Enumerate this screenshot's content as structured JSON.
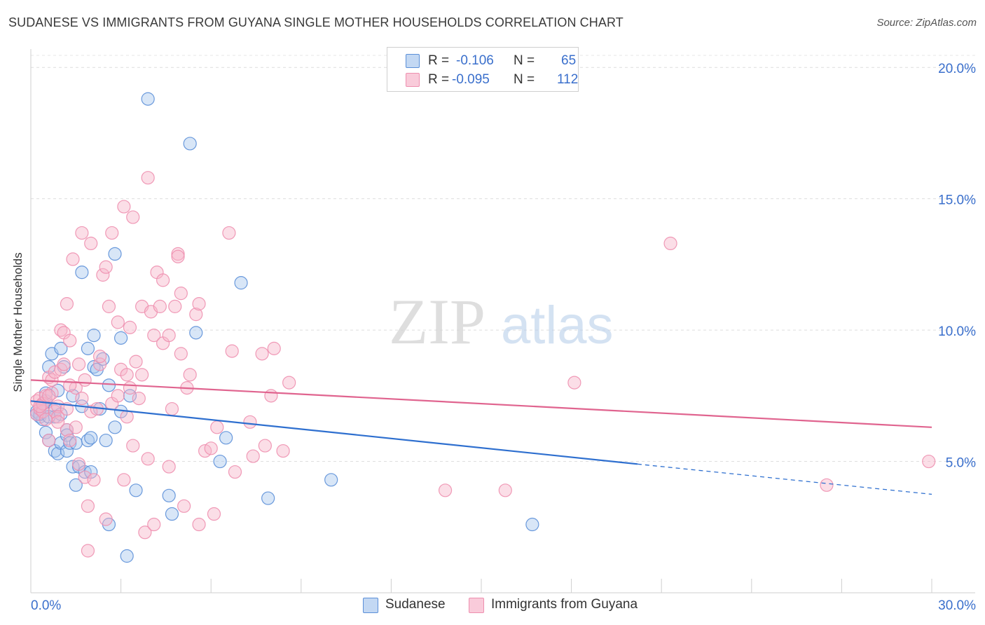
{
  "title": "SUDANESE VS IMMIGRANTS FROM GUYANA SINGLE MOTHER HOUSEHOLDS CORRELATION CHART",
  "source": "Source: ZipAtlas.com",
  "watermark": {
    "zip": "ZIP",
    "atlas": "atlas"
  },
  "legend": {
    "r_label": "R =",
    "n_label": "N =",
    "rows": [
      {
        "r": "-0.106",
        "n": "65",
        "color": "#a9c8ee"
      },
      {
        "r": "-0.095",
        "n": "112",
        "color": "#f6b5c9"
      }
    ]
  },
  "bottom_legend": {
    "series1": "Sudanese",
    "series2": "Immigrants from Guyana"
  },
  "chart_data": {
    "type": "scatter",
    "ylabel": "Single Mother Households",
    "xlim": [
      0,
      30
    ],
    "ylim": [
      0,
      20.7
    ],
    "x_tick_labels": [
      "0.0%",
      "30.0%"
    ],
    "y_ticks": [
      5,
      10,
      15,
      20
    ],
    "y_tick_labels": [
      "5.0%",
      "10.0%",
      "15.0%",
      "20.0%"
    ],
    "grid": true,
    "series": [
      {
        "name": "Sudanese",
        "color": "#5b8fd8",
        "fill": "#a9c8ee",
        "trend": {
          "x0": 0,
          "y0": 7.3,
          "x1": 20.2,
          "y1": 4.9,
          "dash_to_x": 30,
          "dash_to_y": 3.75
        },
        "points": [
          [
            0.2,
            6.9
          ],
          [
            0.3,
            6.7
          ],
          [
            0.4,
            7.0
          ],
          [
            0.4,
            6.6
          ],
          [
            0.5,
            7.3
          ],
          [
            0.5,
            7.6
          ],
          [
            0.5,
            6.1
          ],
          [
            0.6,
            5.8
          ],
          [
            0.6,
            8.6
          ],
          [
            0.7,
            9.1
          ],
          [
            0.8,
            7.0
          ],
          [
            0.8,
            6.7
          ],
          [
            0.8,
            5.4
          ],
          [
            0.9,
            5.3
          ],
          [
            0.9,
            7.7
          ],
          [
            1.0,
            9.3
          ],
          [
            1.0,
            5.7
          ],
          [
            1.1,
            8.6
          ],
          [
            1.2,
            6.2
          ],
          [
            1.2,
            5.4
          ],
          [
            1.2,
            6.0
          ],
          [
            1.3,
            5.7
          ],
          [
            1.4,
            7.5
          ],
          [
            1.4,
            4.8
          ],
          [
            1.5,
            5.7
          ],
          [
            1.5,
            4.1
          ],
          [
            1.6,
            4.8
          ],
          [
            1.7,
            7.1
          ],
          [
            1.7,
            12.2
          ],
          [
            1.8,
            4.6
          ],
          [
            1.9,
            9.3
          ],
          [
            1.9,
            5.8
          ],
          [
            2.0,
            4.6
          ],
          [
            2.1,
            8.6
          ],
          [
            2.1,
            9.8
          ],
          [
            2.2,
            8.5
          ],
          [
            2.3,
            7.0
          ],
          [
            2.4,
            8.9
          ],
          [
            2.5,
            5.8
          ],
          [
            2.6,
            7.9
          ],
          [
            2.6,
            2.6
          ],
          [
            2.8,
            6.3
          ],
          [
            2.8,
            12.9
          ],
          [
            3.0,
            6.9
          ],
          [
            3.0,
            9.7
          ],
          [
            3.2,
            1.4
          ],
          [
            3.3,
            7.5
          ],
          [
            3.5,
            3.9
          ],
          [
            3.9,
            18.8
          ],
          [
            4.6,
            3.7
          ],
          [
            4.7,
            3.0
          ],
          [
            5.3,
            17.1
          ],
          [
            5.5,
            9.9
          ],
          [
            6.3,
            5.0
          ],
          [
            6.5,
            5.9
          ],
          [
            7.0,
            11.8
          ],
          [
            7.9,
            3.6
          ],
          [
            10.0,
            4.3
          ],
          [
            16.7,
            2.6
          ],
          [
            0.3,
            6.8
          ],
          [
            0.6,
            6.7
          ],
          [
            1.0,
            6.8
          ],
          [
            2.0,
            5.9
          ],
          [
            0.4,
            7.2
          ],
          [
            0.2,
            6.8
          ]
        ]
      },
      {
        "name": "Immigrants from Guyana",
        "color": "#ee8faf",
        "fill": "#f6b5c9",
        "trend": {
          "x0": 0,
          "y0": 8.1,
          "x1": 30,
          "y1": 6.3
        },
        "points": [
          [
            0.2,
            7.3
          ],
          [
            0.2,
            6.8
          ],
          [
            0.3,
            7.0
          ],
          [
            0.3,
            7.4
          ],
          [
            0.4,
            6.9
          ],
          [
            0.4,
            7.2
          ],
          [
            0.5,
            7.5
          ],
          [
            0.5,
            6.6
          ],
          [
            0.6,
            8.2
          ],
          [
            0.6,
            5.8
          ],
          [
            0.7,
            7.6
          ],
          [
            0.7,
            8.1
          ],
          [
            0.8,
            8.4
          ],
          [
            0.8,
            6.9
          ],
          [
            0.9,
            7.1
          ],
          [
            0.9,
            6.7
          ],
          [
            1.0,
            10.0
          ],
          [
            1.0,
            8.5
          ],
          [
            1.1,
            8.7
          ],
          [
            1.1,
            9.9
          ],
          [
            1.2,
            11.0
          ],
          [
            1.2,
            7.0
          ],
          [
            1.2,
            6.2
          ],
          [
            1.3,
            9.6
          ],
          [
            1.3,
            5.8
          ],
          [
            1.4,
            12.7
          ],
          [
            1.5,
            7.8
          ],
          [
            1.5,
            6.3
          ],
          [
            1.6,
            8.7
          ],
          [
            1.6,
            4.9
          ],
          [
            1.7,
            13.7
          ],
          [
            1.7,
            7.4
          ],
          [
            1.8,
            8.1
          ],
          [
            1.8,
            4.4
          ],
          [
            1.9,
            3.3
          ],
          [
            1.9,
            1.6
          ],
          [
            2.0,
            13.3
          ],
          [
            2.0,
            6.9
          ],
          [
            2.1,
            4.3
          ],
          [
            2.2,
            7.0
          ],
          [
            2.3,
            8.7
          ],
          [
            2.3,
            9.0
          ],
          [
            2.4,
            12.1
          ],
          [
            2.5,
            12.4
          ],
          [
            2.5,
            2.8
          ],
          [
            2.6,
            10.9
          ],
          [
            2.7,
            7.2
          ],
          [
            2.7,
            13.7
          ],
          [
            2.9,
            7.5
          ],
          [
            2.9,
            10.3
          ],
          [
            3.0,
            8.5
          ],
          [
            3.1,
            4.3
          ],
          [
            3.1,
            14.7
          ],
          [
            3.2,
            6.7
          ],
          [
            3.2,
            8.3
          ],
          [
            3.3,
            10.1
          ],
          [
            3.3,
            7.8
          ],
          [
            3.4,
            14.3
          ],
          [
            3.4,
            5.6
          ],
          [
            3.5,
            8.8
          ],
          [
            3.6,
            7.4
          ],
          [
            3.7,
            8.3
          ],
          [
            3.7,
            10.9
          ],
          [
            3.8,
            2.3
          ],
          [
            3.9,
            5.1
          ],
          [
            3.9,
            15.8
          ],
          [
            4.0,
            10.7
          ],
          [
            4.1,
            2.6
          ],
          [
            4.1,
            9.8
          ],
          [
            4.2,
            12.2
          ],
          [
            4.3,
            10.9
          ],
          [
            4.4,
            9.5
          ],
          [
            4.4,
            11.9
          ],
          [
            4.6,
            9.8
          ],
          [
            4.6,
            4.8
          ],
          [
            4.7,
            7.0
          ],
          [
            4.8,
            10.9
          ],
          [
            4.9,
            12.9
          ],
          [
            4.9,
            12.8
          ],
          [
            5.0,
            11.4
          ],
          [
            5.0,
            9.1
          ],
          [
            5.1,
            3.3
          ],
          [
            5.2,
            7.8
          ],
          [
            5.3,
            8.3
          ],
          [
            5.5,
            10.6
          ],
          [
            5.6,
            11.0
          ],
          [
            5.6,
            2.6
          ],
          [
            5.8,
            5.4
          ],
          [
            6.0,
            5.5
          ],
          [
            6.1,
            3.0
          ],
          [
            6.2,
            6.3
          ],
          [
            6.6,
            13.7
          ],
          [
            6.7,
            9.2
          ],
          [
            6.8,
            4.6
          ],
          [
            7.3,
            6.5
          ],
          [
            7.4,
            5.2
          ],
          [
            7.7,
            9.1
          ],
          [
            7.8,
            5.6
          ],
          [
            8.0,
            7.5
          ],
          [
            8.1,
            9.3
          ],
          [
            8.4,
            5.4
          ],
          [
            8.6,
            8.0
          ],
          [
            13.8,
            3.9
          ],
          [
            15.8,
            3.9
          ],
          [
            18.1,
            8.0
          ],
          [
            21.3,
            13.3
          ],
          [
            26.5,
            4.1
          ],
          [
            29.9,
            5.0
          ],
          [
            0.3,
            7.1
          ],
          [
            0.6,
            7.5
          ],
          [
            0.9,
            6.5
          ],
          [
            1.3,
            7.9
          ]
        ]
      }
    ]
  }
}
